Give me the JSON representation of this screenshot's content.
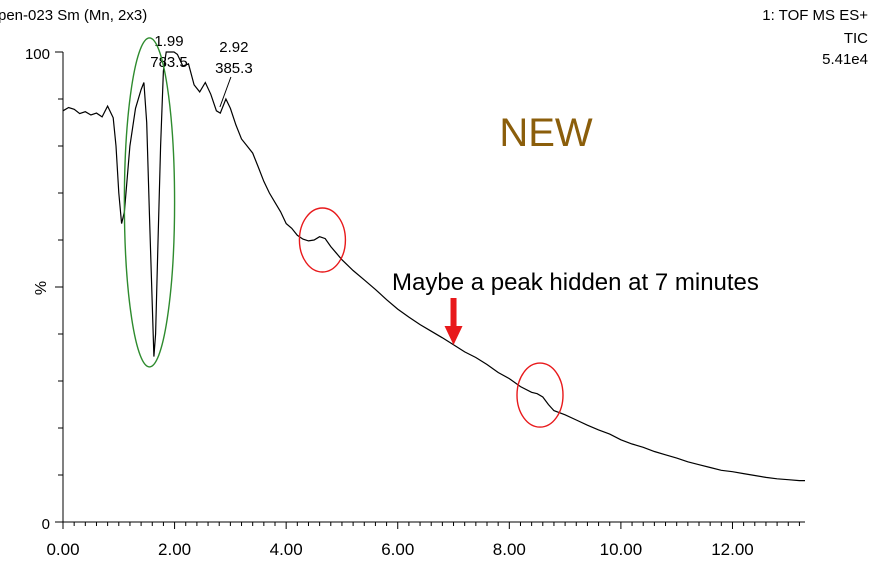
{
  "chart_data": {
    "type": "line",
    "header_left": "pen-023 Sm (Mn, 2x3)",
    "header_right": [
      "1: TOF MS ES+",
      "TIC",
      "5.41e4"
    ],
    "ylabel": "%",
    "ylim": [
      0,
      100
    ],
    "xlim": [
      0,
      13.3
    ],
    "x_ticks": [
      0,
      2,
      4,
      6,
      8,
      10,
      12
    ],
    "x_tick_labels": [
      "0.00",
      "2.00",
      "4.00",
      "6.00",
      "8.00",
      "10.00",
      "12.00"
    ],
    "y_tick_labels": [
      "0",
      "100"
    ],
    "peak_labels": [
      {
        "x": 1.99,
        "y": 100,
        "lines": [
          "1.99",
          "783.5"
        ]
      },
      {
        "x": 2.92,
        "y": 90,
        "lines": [
          "2.92",
          "385.3"
        ]
      }
    ],
    "annotations": {
      "new_text": "NEW",
      "new_color": "#8B5E0B",
      "note_text": "Maybe a peak hidden at 7 minutes",
      "arrow_x": 7.0,
      "arrow_color": "#e8191b",
      "ellipse_green": {
        "cx": 1.55,
        "cy": 68,
        "rx_min": 0.45,
        "ry_pct": 35,
        "color": "#2e8b2e"
      },
      "circles_red": [
        {
          "x": 4.65,
          "y": 60
        },
        {
          "x": 8.55,
          "y": 27
        }
      ],
      "circle_color": "#e8191b"
    },
    "series": [
      {
        "color": "#000000",
        "points": [
          [
            0.0,
            87.5
          ],
          [
            0.1,
            88.2
          ],
          [
            0.2,
            87.8
          ],
          [
            0.3,
            86.9
          ],
          [
            0.4,
            87.3
          ],
          [
            0.5,
            86.6
          ],
          [
            0.6,
            87.0
          ],
          [
            0.7,
            86.2
          ],
          [
            0.8,
            88.5
          ],
          [
            0.9,
            86.0
          ],
          [
            0.95,
            80.0
          ],
          [
            1.0,
            70.0
          ],
          [
            1.05,
            63.5
          ],
          [
            1.1,
            66.0
          ],
          [
            1.2,
            80.0
          ],
          [
            1.3,
            88.0
          ],
          [
            1.4,
            92.0
          ],
          [
            1.45,
            93.5
          ],
          [
            1.5,
            85.0
          ],
          [
            1.55,
            65.0
          ],
          [
            1.6,
            46.0
          ],
          [
            1.63,
            35.2
          ],
          [
            1.66,
            40.0
          ],
          [
            1.7,
            58.0
          ],
          [
            1.75,
            80.0
          ],
          [
            1.8,
            96.0
          ],
          [
            1.85,
            100.0
          ],
          [
            1.99,
            100.0
          ],
          [
            2.05,
            99.5
          ],
          [
            2.15,
            97.0
          ],
          [
            2.25,
            97.5
          ],
          [
            2.35,
            93.0
          ],
          [
            2.45,
            91.5
          ],
          [
            2.55,
            93.5
          ],
          [
            2.65,
            91.0
          ],
          [
            2.75,
            87.5
          ],
          [
            2.82,
            87.0
          ],
          [
            2.92,
            90.0
          ],
          [
            3.0,
            88.0
          ],
          [
            3.1,
            84.5
          ],
          [
            3.2,
            81.5
          ],
          [
            3.3,
            80.0
          ],
          [
            3.4,
            78.5
          ],
          [
            3.5,
            75.5
          ],
          [
            3.6,
            72.5
          ],
          [
            3.7,
            70.0
          ],
          [
            3.8,
            68.0
          ],
          [
            3.9,
            66.0
          ],
          [
            4.0,
            63.5
          ],
          [
            4.1,
            62.5
          ],
          [
            4.2,
            61.0
          ],
          [
            4.3,
            60.2
          ],
          [
            4.4,
            59.8
          ],
          [
            4.5,
            60.0
          ],
          [
            4.6,
            60.7
          ],
          [
            4.7,
            60.3
          ],
          [
            4.8,
            58.6
          ],
          [
            4.9,
            57.2
          ],
          [
            5.0,
            55.8
          ],
          [
            5.2,
            53.5
          ],
          [
            5.4,
            51.5
          ],
          [
            5.6,
            49.5
          ],
          [
            5.8,
            47.3
          ],
          [
            6.0,
            45.3
          ],
          [
            6.2,
            43.6
          ],
          [
            6.4,
            42.0
          ],
          [
            6.6,
            40.6
          ],
          [
            6.8,
            39.2
          ],
          [
            7.0,
            37.7
          ],
          [
            7.2,
            36.2
          ],
          [
            7.4,
            35.0
          ],
          [
            7.6,
            33.5
          ],
          [
            7.8,
            31.8
          ],
          [
            8.0,
            30.5
          ],
          [
            8.2,
            28.8
          ],
          [
            8.4,
            27.6
          ],
          [
            8.5,
            27.3
          ],
          [
            8.6,
            26.6
          ],
          [
            8.7,
            25.0
          ],
          [
            8.8,
            23.7
          ],
          [
            9.0,
            22.8
          ],
          [
            9.2,
            21.7
          ],
          [
            9.4,
            20.6
          ],
          [
            9.6,
            19.6
          ],
          [
            9.8,
            18.7
          ],
          [
            10.0,
            17.5
          ],
          [
            10.2,
            16.6
          ],
          [
            10.4,
            15.9
          ],
          [
            10.6,
            15.0
          ],
          [
            10.8,
            14.3
          ],
          [
            11.0,
            13.6
          ],
          [
            11.2,
            12.8
          ],
          [
            11.4,
            12.2
          ],
          [
            11.6,
            11.6
          ],
          [
            11.8,
            11.0
          ],
          [
            12.0,
            10.7
          ],
          [
            12.2,
            10.3
          ],
          [
            12.4,
            9.9
          ],
          [
            12.6,
            9.5
          ],
          [
            12.8,
            9.2
          ],
          [
            13.0,
            9.0
          ],
          [
            13.2,
            8.8
          ],
          [
            13.3,
            8.8
          ]
        ]
      }
    ]
  }
}
